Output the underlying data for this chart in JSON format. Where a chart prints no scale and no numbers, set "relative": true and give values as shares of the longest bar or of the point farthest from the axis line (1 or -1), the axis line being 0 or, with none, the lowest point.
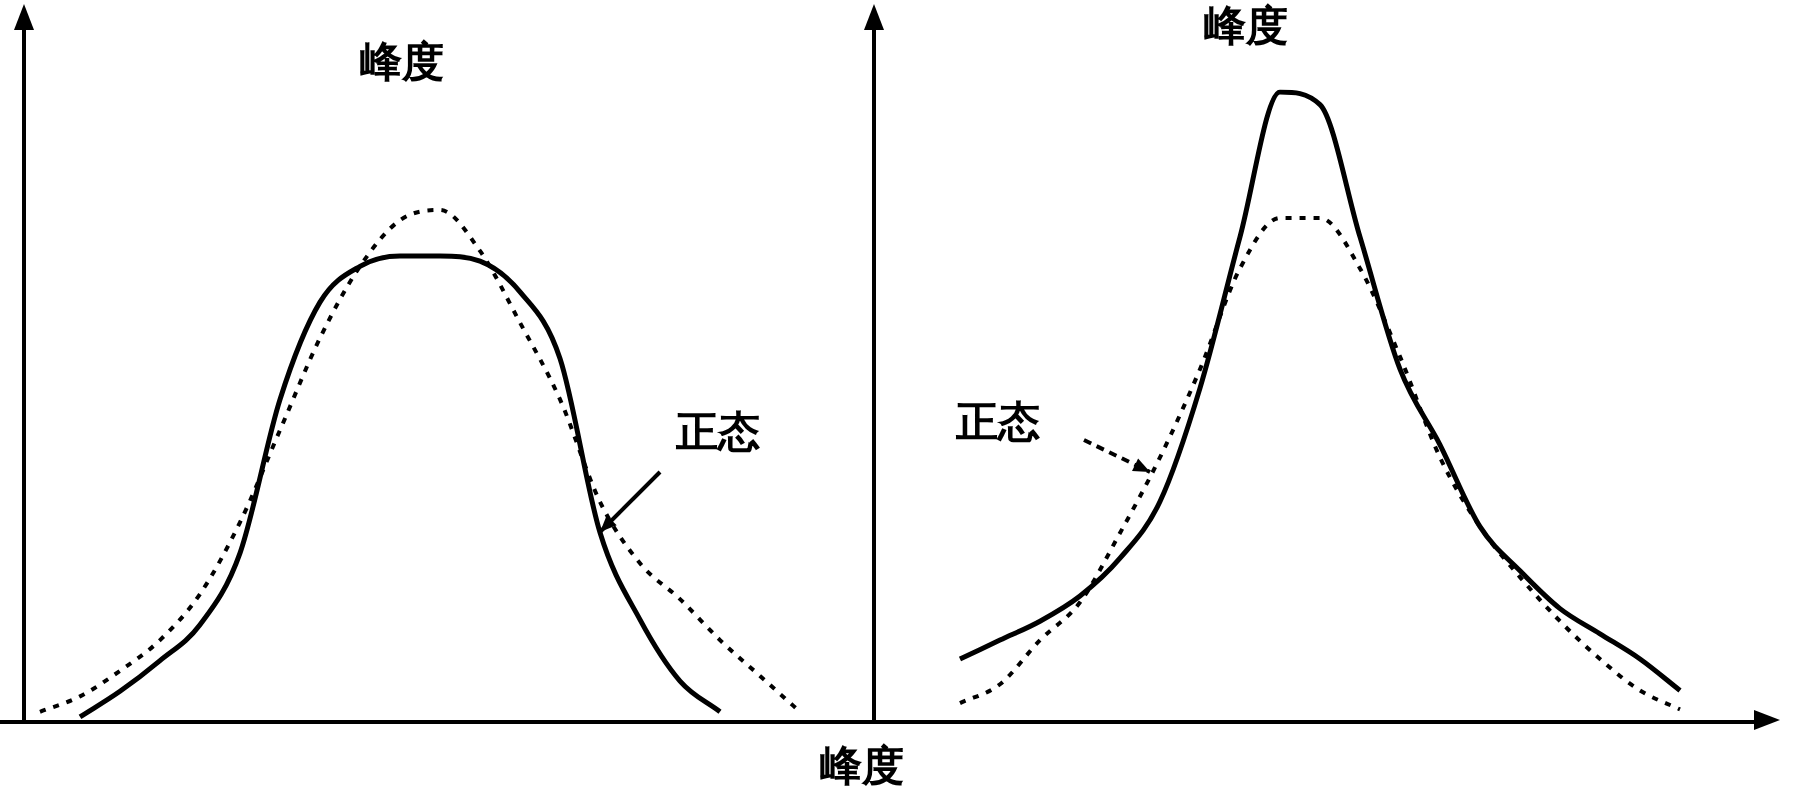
{
  "chart_data": [
    {
      "type": "line",
      "title": "峰度",
      "relative": true,
      "annotations": [
        "正态"
      ],
      "categories": [
        null,
        null,
        null,
        null,
        null,
        null,
        null,
        null,
        null,
        null,
        null,
        null,
        null,
        null,
        null,
        null,
        null,
        null,
        null,
        null,
        null
      ],
      "series": [
        {
          "color": "#000000",
          "line_style": "solid",
          "values": [
            null,
            0.01,
            0.06,
            0.12,
            0.19,
            0.33,
            0.63,
            0.82,
            0.89,
            0.91,
            0.91,
            0.9,
            0.84,
            0.71,
            0.37,
            0.2,
            0.08,
            0.02,
            null,
            null,
            null
          ]
        },
        {
          "color": "#000000",
          "line_style": "dotted",
          "values": [
            0.02,
            0.05,
            0.1,
            0.16,
            0.25,
            0.39,
            0.57,
            0.75,
            0.89,
            0.98,
            1,
            0.92,
            0.78,
            0.63,
            0.43,
            0.31,
            0.24,
            0.16,
            0.09,
            0.02,
            null
          ]
        }
      ]
    },
    {
      "type": "line",
      "title": "峰度",
      "xlabel": "峰度",
      "relative": true,
      "annotations": [
        "正态"
      ],
      "categories": [
        null,
        null,
        null,
        null,
        null,
        null,
        null,
        null,
        null,
        null,
        null,
        null,
        null,
        null,
        null,
        null,
        null,
        null,
        null,
        null,
        null
      ],
      "series": [
        {
          "color": "#000000",
          "line_style": "solid",
          "values": [
            null,
            0.1,
            0.13,
            0.16,
            0.2,
            0.26,
            0.35,
            0.53,
            0.77,
            1,
            0.98,
            0.77,
            0.56,
            0.44,
            0.31,
            0.24,
            0.18,
            0.14,
            0.1,
            0.05,
            null
          ]
        },
        {
          "color": "#000000",
          "line_style": "dotted",
          "values": [
            null,
            0.03,
            0.06,
            0.13,
            0.19,
            0.3,
            0.42,
            0.56,
            0.72,
            0.8,
            0.8,
            0.72,
            0.58,
            0.42,
            0.31,
            0.23,
            0.16,
            0.1,
            0.05,
            0.02,
            null
          ]
        }
      ]
    }
  ]
}
